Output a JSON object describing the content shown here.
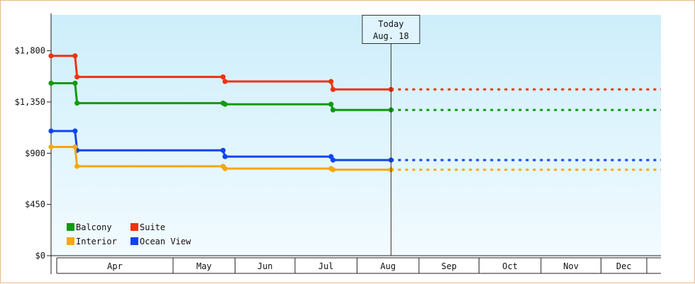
{
  "chart_data": {
    "type": "line",
    "title": "",
    "xlabel": "",
    "ylabel": "",
    "ylim": [
      0,
      2115
    ],
    "y_ticks": [
      {
        "value": 0,
        "label": "$0"
      },
      {
        "value": 450,
        "label": "$450"
      },
      {
        "value": 900,
        "label": "$900"
      },
      {
        "value": 1350,
        "label": "$1,350"
      },
      {
        "value": 1800,
        "label": "$1,800"
      }
    ],
    "x_domain": [
      "2024-03-01",
      "2024-12-31"
    ],
    "months": [
      {
        "label": "Apr",
        "start": "2024-04-01"
      },
      {
        "label": "May",
        "start": "2024-05-01"
      },
      {
        "label": "Jun",
        "start": "2024-06-01"
      },
      {
        "label": "Jul",
        "start": "2024-07-01"
      },
      {
        "label": "Aug",
        "start": "2024-08-01"
      },
      {
        "label": "Sep",
        "start": "2024-09-01"
      },
      {
        "label": "Oct",
        "start": "2024-10-01"
      },
      {
        "label": "Nov",
        "start": "2024-11-01"
      },
      {
        "label": "Dec",
        "start": "2024-12-01"
      }
    ],
    "today": {
      "title": "Today",
      "date_label": "Aug. 18",
      "date": "2024-08-18"
    },
    "forecast_end": "2024-12-31",
    "grid": false,
    "legend_position": "bottom-left",
    "series": [
      {
        "name": "Suite",
        "color": "#ee3311",
        "points": [
          {
            "date": "2024-03-01",
            "value": 1755
          },
          {
            "date": "2024-03-13",
            "value": 1755
          },
          {
            "date": "2024-03-14",
            "value": 1570
          },
          {
            "date": "2024-05-26",
            "value": 1570
          },
          {
            "date": "2024-05-27",
            "value": 1530
          },
          {
            "date": "2024-07-19",
            "value": 1530
          },
          {
            "date": "2024-07-20",
            "value": 1460
          },
          {
            "date": "2024-08-18",
            "value": 1460
          }
        ],
        "forecast_value": 1460
      },
      {
        "name": "Balcony",
        "color": "#119911",
        "points": [
          {
            "date": "2024-03-01",
            "value": 1515
          },
          {
            "date": "2024-03-13",
            "value": 1515
          },
          {
            "date": "2024-03-14",
            "value": 1340
          },
          {
            "date": "2024-05-26",
            "value": 1340
          },
          {
            "date": "2024-05-27",
            "value": 1330
          },
          {
            "date": "2024-07-19",
            "value": 1330
          },
          {
            "date": "2024-07-20",
            "value": 1280
          },
          {
            "date": "2024-08-18",
            "value": 1280
          }
        ],
        "forecast_value": 1280
      },
      {
        "name": "Ocean View",
        "color": "#1144ee",
        "points": [
          {
            "date": "2024-03-01",
            "value": 1095
          },
          {
            "date": "2024-03-13",
            "value": 1095
          },
          {
            "date": "2024-03-14",
            "value": 925
          },
          {
            "date": "2024-05-26",
            "value": 925
          },
          {
            "date": "2024-05-27",
            "value": 870
          },
          {
            "date": "2024-07-19",
            "value": 870
          },
          {
            "date": "2024-07-20",
            "value": 840
          },
          {
            "date": "2024-08-18",
            "value": 840
          }
        ],
        "forecast_value": 840
      },
      {
        "name": "Interior",
        "color": "#f5a810",
        "points": [
          {
            "date": "2024-03-01",
            "value": 955
          },
          {
            "date": "2024-03-13",
            "value": 955
          },
          {
            "date": "2024-03-14",
            "value": 785
          },
          {
            "date": "2024-05-26",
            "value": 785
          },
          {
            "date": "2024-05-27",
            "value": 765
          },
          {
            "date": "2024-07-19",
            "value": 765
          },
          {
            "date": "2024-07-20",
            "value": 755
          },
          {
            "date": "2024-08-18",
            "value": 755
          }
        ],
        "forecast_value": 755
      }
    ],
    "legend": [
      {
        "name": "Balcony",
        "color": "#119911"
      },
      {
        "name": "Suite",
        "color": "#ee3311"
      },
      {
        "name": "Interior",
        "color": "#f5a810"
      },
      {
        "name": "Ocean View",
        "color": "#1144ee"
      }
    ]
  }
}
